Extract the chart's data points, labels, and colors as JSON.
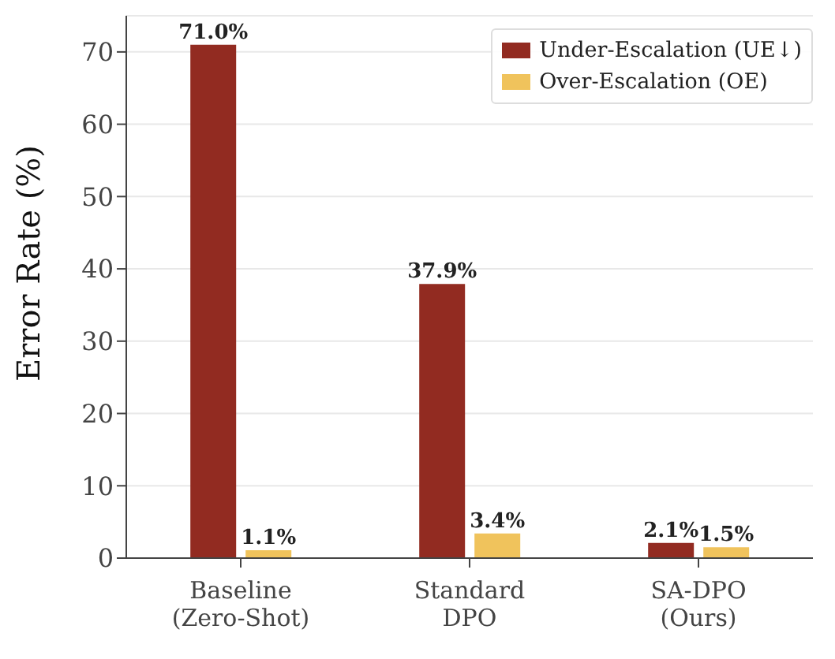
{
  "chart_data": {
    "type": "bar",
    "ylabel": "Error Rate (%)",
    "categories": [
      "Baseline\n(Zero-Shot)",
      "Standard\nDPO",
      "SA-DPO\n(Ours)"
    ],
    "series": [
      {
        "name": "Under-Escalation (UE↓)",
        "color": "#922b21",
        "values": [
          71.0,
          37.9,
          2.1
        ],
        "value_labels": [
          "71.0%",
          "37.9%",
          "2.1%"
        ]
      },
      {
        "name": "Over-Escalation (OE)",
        "color": "#f0c35c",
        "values": [
          1.1,
          3.4,
          1.5
        ],
        "value_labels": [
          "1.1%",
          "3.4%",
          "1.5%"
        ]
      }
    ],
    "ylim": [
      0,
      75
    ],
    "yticks": [
      0,
      10,
      20,
      30,
      40,
      50,
      60,
      70
    ],
    "grid": "y",
    "legend": "top right"
  }
}
